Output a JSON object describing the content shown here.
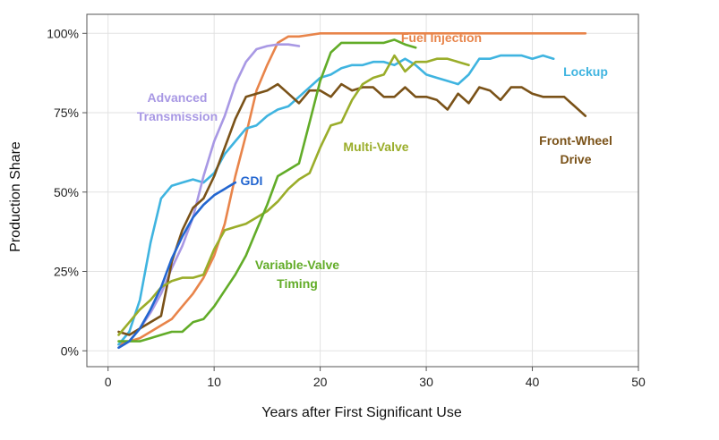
{
  "chart_data": {
    "type": "line",
    "xlabel": "Years after First Significant Use",
    "ylabel": "Production Share",
    "xlim": [
      -2,
      50
    ],
    "ylim": [
      -5,
      106
    ],
    "x_ticks": [
      0,
      10,
      20,
      30,
      40,
      50
    ],
    "y_ticks": [
      0,
      25,
      50,
      75,
      100
    ],
    "y_tick_labels": [
      "0%",
      "25%",
      "50%",
      "75%",
      "100%"
    ],
    "grid": true,
    "legend": "inline labels",
    "series": [
      {
        "name": "Fuel Injection",
        "label_lines": [
          "Fuel Injection"
        ],
        "color": "#E8844A",
        "x": [
          1,
          2,
          3,
          4,
          5,
          6,
          7,
          8,
          9,
          10,
          11,
          12,
          13,
          14,
          15,
          16,
          17,
          18,
          19,
          20,
          25,
          30,
          35,
          40,
          45
        ],
        "y": [
          2,
          3,
          4,
          6,
          8,
          10,
          14,
          18,
          23,
          30,
          40,
          55,
          68,
          82,
          90,
          97,
          99,
          99,
          99.5,
          100,
          100,
          100,
          100,
          100,
          100
        ]
      },
      {
        "name": "Lockup",
        "label_lines": [
          "Lockup"
        ],
        "color": "#3FB4E0",
        "x": [
          1,
          2,
          3,
          4,
          5,
          6,
          7,
          8,
          9,
          10,
          11,
          12,
          13,
          14,
          15,
          16,
          17,
          18,
          19,
          20,
          21,
          22,
          23,
          24,
          25,
          26,
          27,
          28,
          29,
          30,
          31,
          32,
          33,
          34,
          35,
          36,
          37,
          38,
          39,
          40,
          41,
          42
        ],
        "y": [
          2,
          6,
          16,
          34,
          48,
          52,
          53,
          54,
          53,
          56,
          62,
          66,
          70,
          71,
          74,
          76,
          77,
          80,
          83,
          86,
          87,
          89,
          90,
          90,
          91,
          91,
          90,
          92,
          90,
          87,
          86,
          85,
          84,
          87,
          92,
          92,
          93,
          93,
          93,
          92,
          93,
          92
        ]
      },
      {
        "name": "Advanced Transmission",
        "label_lines": [
          "Advanced",
          "Transmission"
        ],
        "color": "#A898E4",
        "x": [
          1,
          2,
          3,
          4,
          5,
          6,
          7,
          8,
          9,
          10,
          11,
          12,
          13,
          14,
          15,
          16,
          17,
          18
        ],
        "y": [
          1,
          3,
          7,
          12,
          18,
          26,
          33,
          42,
          55,
          66,
          74,
          84,
          91,
          95,
          96,
          96.5,
          96.5,
          96
        ]
      },
      {
        "name": "Front-Wheel Drive",
        "label_lines": [
          "Front-Wheel",
          "Drive"
        ],
        "color": "#7A5218",
        "x": [
          1,
          2,
          3,
          4,
          5,
          6,
          7,
          8,
          9,
          10,
          11,
          12,
          13,
          14,
          15,
          16,
          17,
          18,
          19,
          20,
          21,
          22,
          23,
          24,
          25,
          26,
          27,
          28,
          29,
          30,
          31,
          32,
          33,
          34,
          35,
          36,
          37,
          38,
          39,
          40,
          41,
          42,
          43,
          44,
          45
        ],
        "y": [
          6,
          5,
          7,
          9,
          11,
          28,
          38,
          45,
          48,
          55,
          64,
          73,
          80,
          81,
          82,
          84,
          81,
          78,
          82,
          82,
          80,
          84,
          82,
          83,
          83,
          80,
          80,
          83,
          80,
          80,
          79,
          76,
          81,
          78,
          83,
          82,
          79,
          83,
          83,
          81,
          80,
          80,
          80,
          77,
          74
        ]
      },
      {
        "name": "Multi-Valve",
        "label_lines": [
          "Multi-Valve"
        ],
        "color": "#9AAD2A",
        "x": [
          1,
          2,
          3,
          4,
          5,
          6,
          7,
          8,
          9,
          10,
          11,
          12,
          13,
          14,
          15,
          16,
          17,
          18,
          19,
          20,
          21,
          22,
          23,
          24,
          25,
          26,
          27,
          28,
          29,
          30,
          31,
          32,
          33,
          34
        ],
        "y": [
          5,
          9,
          13,
          16,
          20,
          22,
          23,
          23,
          24,
          32,
          38,
          39,
          40,
          42,
          44,
          47,
          51,
          54,
          56,
          64,
          71,
          72,
          79,
          84,
          86,
          87,
          93,
          88,
          91,
          91,
          92,
          92,
          91,
          90
        ]
      },
      {
        "name": "Variable-Valve Timing",
        "label_lines": [
          "Variable-Valve",
          "Timing"
        ],
        "color": "#62AC28",
        "x": [
          1,
          2,
          3,
          4,
          5,
          6,
          7,
          8,
          9,
          10,
          11,
          12,
          13,
          14,
          15,
          16,
          17,
          18,
          19,
          20,
          21,
          22,
          23,
          24,
          25,
          26,
          27,
          28,
          29
        ],
        "y": [
          3,
          3,
          3,
          4,
          5,
          6,
          6,
          9,
          10,
          14,
          19,
          24,
          30,
          38,
          46,
          55,
          57,
          59,
          72,
          85,
          94,
          97,
          97,
          97,
          97,
          97,
          98,
          96.5,
          95.5
        ]
      },
      {
        "name": "GDI",
        "label_lines": [
          "GDI"
        ],
        "color": "#2366D0",
        "x": [
          1,
          2,
          3,
          4,
          5,
          6,
          7,
          8,
          9,
          10,
          11,
          12
        ],
        "y": [
          1,
          3,
          7,
          13,
          20,
          29,
          36,
          42,
          46,
          49,
          51,
          53
        ]
      }
    ]
  }
}
